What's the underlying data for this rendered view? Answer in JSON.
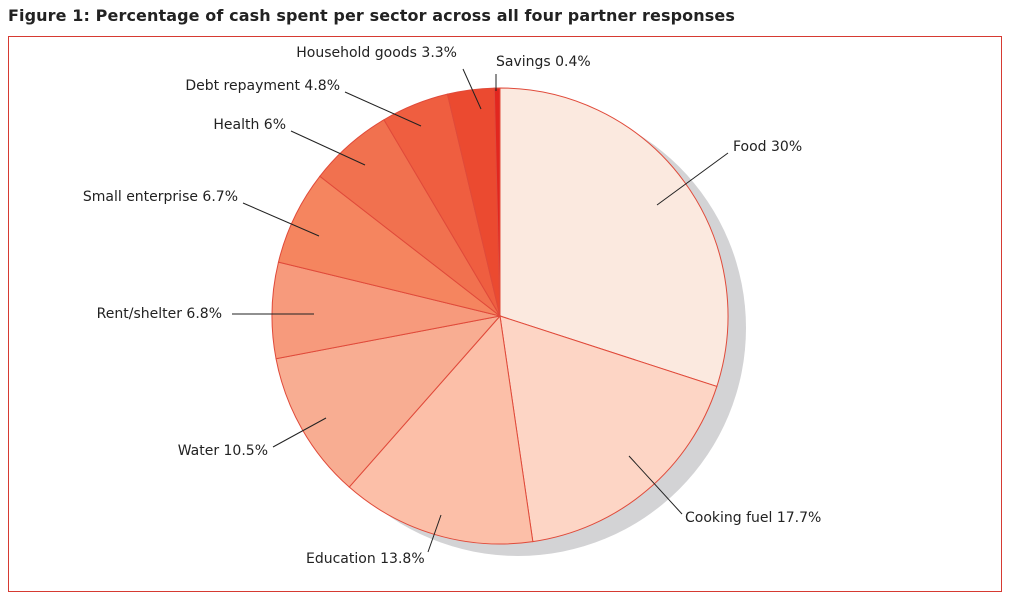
{
  "figure": {
    "title": "Figure 1: Percentage of cash spent per sector across all four partner responses"
  },
  "chart_data": {
    "type": "pie",
    "title": "Figure 1: Percentage of cash spent per sector across all four partner responses",
    "start": "12 o'clock",
    "direction": "clockwise",
    "legend": "none",
    "categories": [
      "Food",
      "Cooking fuel",
      "Education",
      "Water",
      "Rent/shelter",
      "Small enterprise",
      "Health",
      "Debt repayment",
      "Household goods",
      "Savings"
    ],
    "values": [
      30,
      17.7,
      13.8,
      10.5,
      6.8,
      6.7,
      6,
      4.8,
      3.3,
      0.4
    ],
    "unit": "%",
    "labels": [
      "Food 30%",
      "Cooking fuel 17.7%",
      "Education 13.8%",
      "Water 10.5%",
      "Rent/shelter 6.8%",
      "Small enterprise 6.7%",
      "Health 6%",
      "Debt repayment 4.8%",
      "Household goods 3.3%",
      "Savings 0.4%"
    ],
    "colors": [
      "#fbe9df",
      "#fdd5c5",
      "#fcbfa8",
      "#f8ad92",
      "#f79a7c",
      "#f5855f",
      "#f1714f",
      "#ef5e40",
      "#eb4a30",
      "#e2261f"
    ],
    "edge_color": "#e04a3a",
    "shadow_color": "#d3d3d5",
    "frame_color": "#d63a32"
  }
}
